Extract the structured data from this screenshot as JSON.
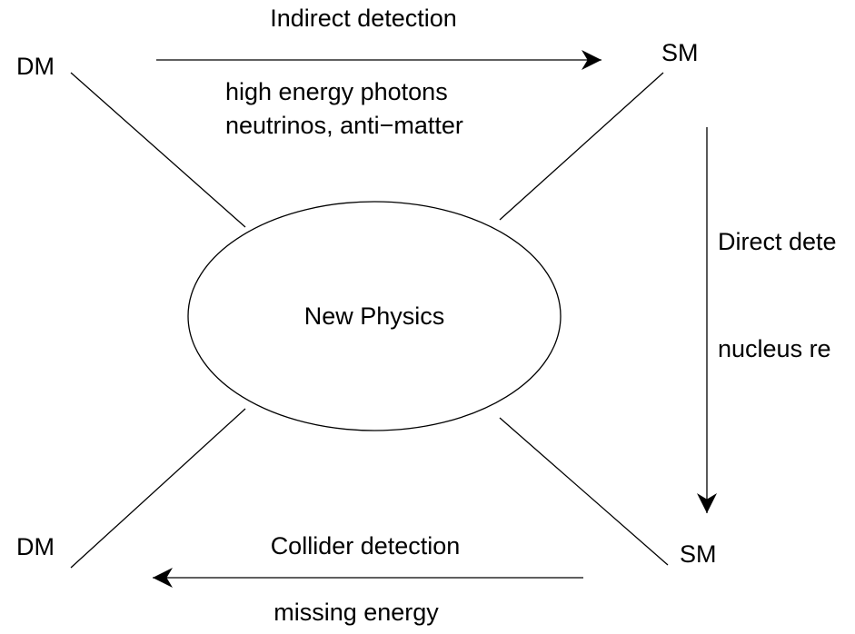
{
  "center": {
    "label": "New Physics"
  },
  "corners": {
    "top_left": "DM",
    "top_right": "SM",
    "bottom_left": "DM",
    "bottom_right": "SM"
  },
  "indirect": {
    "title": "Indirect detection",
    "details": [
      "high energy photons",
      "neutrinos, anti−matter"
    ]
  },
  "direct": {
    "title": "Direct dete",
    "detail": "nucleus re"
  },
  "collider": {
    "title": "Collider detection",
    "detail": "missing energy"
  }
}
